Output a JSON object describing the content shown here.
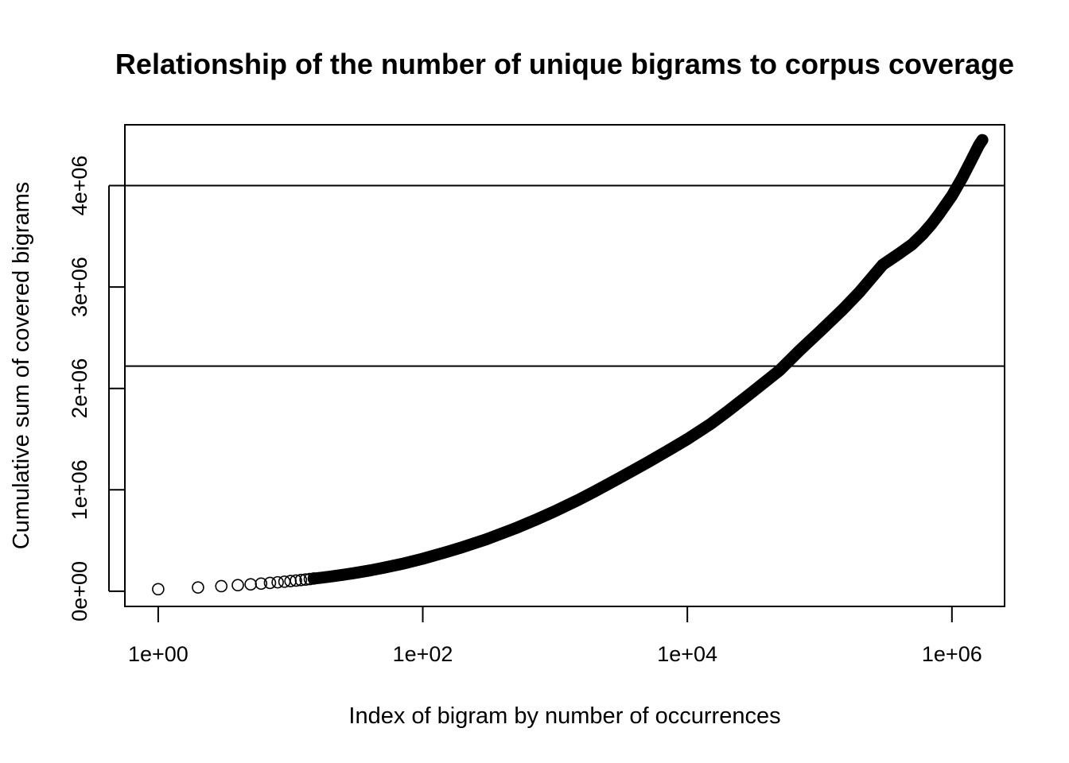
{
  "chart_data": {
    "type": "scatter",
    "title": "Relationship of the number of unique bigrams to corpus coverage",
    "xlabel": "Index of bigram by number of occurrences",
    "ylabel": "Cumulative sum of covered bigrams",
    "x_scale": "log10",
    "xlim": [
      0.56,
      2500000
    ],
    "ylim": [
      -150000,
      4600000
    ],
    "x_ticks": [
      {
        "value": 1,
        "label": "1e+00"
      },
      {
        "value": 100,
        "label": "1e+02"
      },
      {
        "value": 10000,
        "label": "1e+04"
      },
      {
        "value": 1000000,
        "label": "1e+06"
      }
    ],
    "y_ticks": [
      {
        "value": 0,
        "label": "0e+00"
      },
      {
        "value": 1000000,
        "label": "1e+06"
      },
      {
        "value": 2000000,
        "label": "2e+06"
      },
      {
        "value": 3000000,
        "label": "3e+06"
      },
      {
        "value": 4000000,
        "label": "4e+06"
      }
    ],
    "hlines": [
      2220000,
      4000000
    ],
    "marker": "open-circle",
    "series": [
      {
        "points": [
          [
            1,
            20000
          ],
          [
            2,
            37000
          ],
          [
            3,
            50000
          ],
          [
            4,
            60000
          ],
          [
            5,
            68000
          ],
          [
            6,
            75000
          ],
          [
            7,
            82000
          ],
          [
            8,
            88000
          ],
          [
            9,
            94000
          ],
          [
            10,
            100000
          ],
          [
            11,
            105000
          ],
          [
            12,
            110000
          ],
          [
            13,
            115000
          ],
          [
            14,
            120000
          ],
          [
            15,
            125000
          ],
          [
            17,
            133000
          ],
          [
            20,
            145000
          ],
          [
            25,
            162000
          ],
          [
            30,
            178000
          ],
          [
            40,
            205000
          ],
          [
            50,
            230000
          ],
          [
            70,
            270000
          ],
          [
            100,
            320000
          ],
          [
            150,
            385000
          ],
          [
            200,
            435000
          ],
          [
            300,
            510000
          ],
          [
            500,
            620000
          ],
          [
            700,
            700000
          ],
          [
            1000,
            790000
          ],
          [
            1500,
            900000
          ],
          [
            2000,
            985000
          ],
          [
            3000,
            1110000
          ],
          [
            5000,
            1270000
          ],
          [
            7000,
            1380000
          ],
          [
            10000,
            1500000
          ],
          [
            15000,
            1650000
          ],
          [
            20000,
            1770000
          ],
          [
            30000,
            1950000
          ],
          [
            50000,
            2180000
          ],
          [
            70000,
            2370000
          ],
          [
            100000,
            2560000
          ],
          [
            150000,
            2780000
          ],
          [
            200000,
            2950000
          ],
          [
            300000,
            3220000
          ],
          [
            400000,
            3330000
          ],
          [
            500000,
            3420000
          ],
          [
            600000,
            3520000
          ],
          [
            700000,
            3620000
          ],
          [
            800000,
            3720000
          ],
          [
            1000000,
            3900000
          ],
          [
            1200000,
            4080000
          ],
          [
            1400000,
            4250000
          ],
          [
            1600000,
            4400000
          ],
          [
            1700000,
            4450000
          ]
        ]
      }
    ]
  }
}
